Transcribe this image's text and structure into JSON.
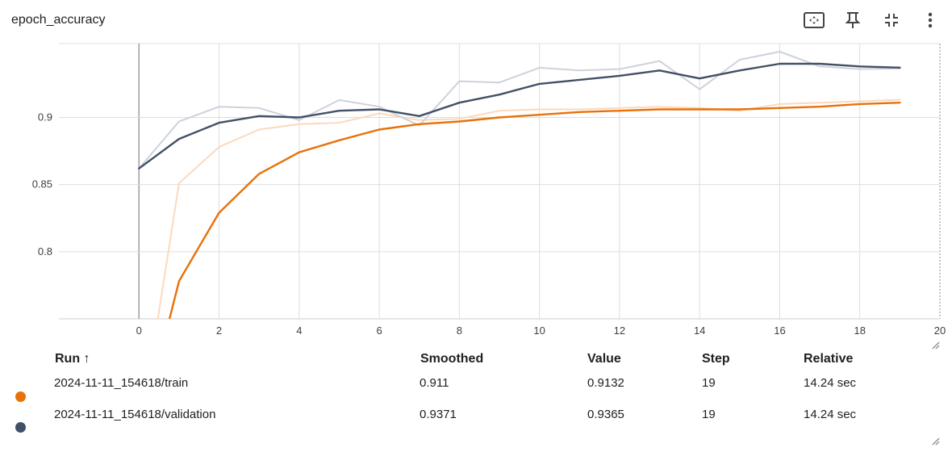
{
  "card": {
    "title": "epoch_accuracy",
    "toolbar": [
      {
        "name": "fit-domain-icon"
      },
      {
        "name": "pin-icon"
      },
      {
        "name": "collapse-icon"
      },
      {
        "name": "more-vert-icon"
      }
    ]
  },
  "chart_data": {
    "type": "line",
    "title": "epoch_accuracy",
    "xlabel": "",
    "ylabel": "",
    "xlim": [
      -2,
      20
    ],
    "ylim": [
      0.75,
      0.955
    ],
    "x_ticks": [
      "0",
      "2",
      "4",
      "6",
      "8",
      "10",
      "12",
      "14",
      "16",
      "18",
      "20"
    ],
    "y_ticks": [
      "0.8",
      "0.85",
      "0.9"
    ],
    "x": [
      0,
      1,
      2,
      3,
      4,
      5,
      6,
      7,
      8,
      9,
      10,
      11,
      12,
      13,
      14,
      15,
      16,
      17,
      18,
      19
    ],
    "series": [
      {
        "name": "2024-11-11_154618/train",
        "kind": "raw",
        "color": "#fcd9bd",
        "values": [
          0.66,
          0.851,
          0.878,
          0.891,
          0.895,
          0.896,
          0.903,
          0.898,
          0.899,
          0.905,
          0.906,
          0.906,
          0.907,
          0.908,
          0.907,
          0.905,
          0.91,
          0.911,
          0.912,
          0.9132
        ]
      },
      {
        "name": "2024-11-11_154618/validation",
        "kind": "raw",
        "color": "#cdd2db",
        "values": [
          0.862,
          0.897,
          0.908,
          0.907,
          0.898,
          0.913,
          0.908,
          0.894,
          0.927,
          0.926,
          0.937,
          0.935,
          0.936,
          0.942,
          0.921,
          0.943,
          0.949,
          0.938,
          0.936,
          0.9365
        ]
      },
      {
        "name": "2024-11-11_154618/train",
        "kind": "smoothed",
        "color": "#e8710a",
        "values": [
          0.66,
          0.778,
          0.829,
          0.858,
          0.874,
          0.883,
          0.891,
          0.895,
          0.897,
          0.9,
          0.902,
          0.904,
          0.905,
          0.906,
          0.906,
          0.906,
          0.907,
          0.908,
          0.91,
          0.911
        ]
      },
      {
        "name": "2024-11-11_154618/validation",
        "kind": "smoothed",
        "color": "#425066",
        "values": [
          0.862,
          0.884,
          0.896,
          0.901,
          0.9,
          0.905,
          0.906,
          0.901,
          0.911,
          0.917,
          0.925,
          0.928,
          0.931,
          0.935,
          0.929,
          0.935,
          0.94,
          0.94,
          0.938,
          0.9371
        ]
      }
    ]
  },
  "table": {
    "headers": {
      "run": "Run ↑",
      "smoothed": "Smoothed",
      "value": "Value",
      "step": "Step",
      "relative": "Relative"
    },
    "rows": [
      {
        "color": "#e8710a",
        "run": "2024-11-11_154618/train",
        "smoothed": "0.911",
        "value": "0.9132",
        "step": "19",
        "relative": "14.24 sec"
      },
      {
        "color": "#425066",
        "run": "2024-11-11_154618/validation",
        "smoothed": "0.9371",
        "value": "0.9365",
        "step": "19",
        "relative": "14.24 sec"
      }
    ]
  }
}
